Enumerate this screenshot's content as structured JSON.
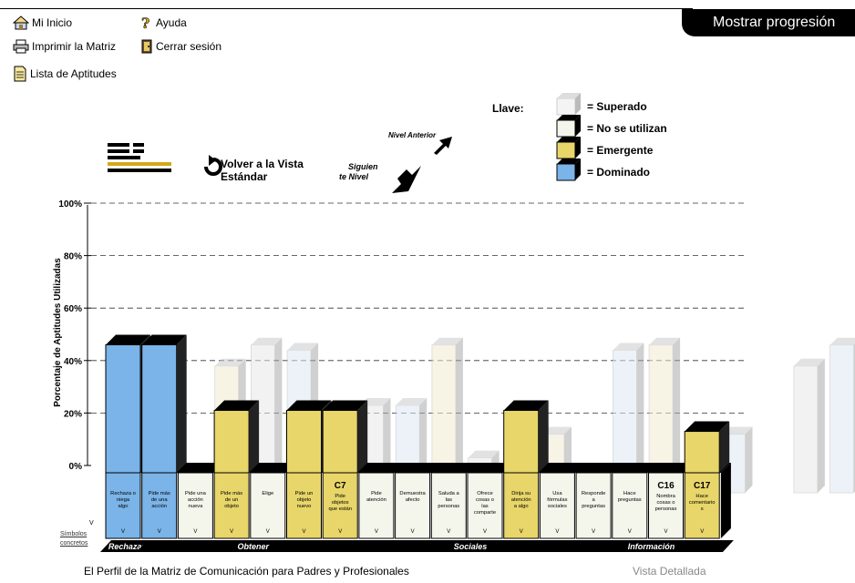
{
  "header": {
    "show_progression": "Mostrar progresión",
    "nav": {
      "home": "Mi Inicio",
      "help": "Ayuda",
      "print": "Imprimir la Matriz",
      "logout": "Cerrar sesión",
      "skills_list": "Lista de Aptitudes"
    }
  },
  "key": {
    "title": "Llave:",
    "items": [
      {
        "label": "= Superado",
        "color": "#f4f4f4"
      },
      {
        "label": "= No se utilizan",
        "color": "#f4f6ec"
      },
      {
        "label": "= Emergente",
        "color": "#e8d66a"
      },
      {
        "label": "= Dominado",
        "color": "#7ab4e8"
      }
    ]
  },
  "view": {
    "back_line1": "Volver a la Vista",
    "back_line2": "Estándar",
    "prev_level": "Nivel Anterior",
    "next_level_1": "Siguien",
    "next_level_2": "te Nivel"
  },
  "side": {
    "v": "V",
    "concrete_symbols_1": "Símbolos",
    "concrete_symbols_2": "concretos"
  },
  "chart_data": {
    "type": "bar",
    "ylabel": "Porcentaje de Aptitudes Utilizadas",
    "ylim": [
      0,
      100
    ],
    "yticks": [
      "0%",
      "20%",
      "40%",
      "60%",
      "80%",
      "100%"
    ],
    "grid": true,
    "bars": [
      {
        "label": "Rechaza o niega algo",
        "value": 46,
        "status": "Dominado",
        "code": ""
      },
      {
        "label": "Pide más de una acción",
        "value": 46,
        "status": "Dominado",
        "code": ""
      },
      {
        "label": "Pide una acción nueva",
        "value": 0,
        "status": "No se utilizan",
        "code": ""
      },
      {
        "label": "Pide más de un objeto",
        "value": 21,
        "status": "Emergente",
        "code": ""
      },
      {
        "label": "Elige",
        "value": 0,
        "status": "No se utilizan",
        "code": ""
      },
      {
        "label": "Pide un objeto nuevo",
        "value": 21,
        "status": "Emergente",
        "code": ""
      },
      {
        "label": "Pide objetos que están",
        "value": 21,
        "status": "Emergente",
        "code": "C7"
      },
      {
        "label": "Pide atención",
        "value": 0,
        "status": "No se utilizan",
        "code": ""
      },
      {
        "label": "Demuestra afecto",
        "value": 0,
        "status": "No se utilizan",
        "code": ""
      },
      {
        "label": "Saluda a las personas",
        "value": 0,
        "status": "No se utilizan",
        "code": ""
      },
      {
        "label": "Ofrece cosas o las comparte",
        "value": 0,
        "status": "No se utilizan",
        "code": ""
      },
      {
        "label": "Dirija su atención a algo",
        "value": 21,
        "status": "Emergente",
        "code": ""
      },
      {
        "label": "Usa fórmulas sociales",
        "value": 0,
        "status": "No se utilizan",
        "code": ""
      },
      {
        "label": "Responde a preguntas",
        "value": 0,
        "status": "No se utilizan",
        "code": ""
      },
      {
        "label": "Hace preguntas",
        "value": 0,
        "status": "No se utilizan",
        "code": ""
      },
      {
        "label": "Nombra cosas o personas",
        "value": 0,
        "status": "No se utilizan",
        "code": "C16"
      },
      {
        "label": "Hace comentario s",
        "value": 13,
        "status": "Emergente",
        "code": "C17"
      }
    ],
    "cell_mark": "V",
    "groups": [
      {
        "label": "Rechazar",
        "start": 0,
        "end": 0
      },
      {
        "label": "Obtener",
        "start": 1,
        "end": 6
      },
      {
        "label": "Sociales",
        "start": 7,
        "end": 12
      },
      {
        "label": "Información",
        "start": 13,
        "end": 16
      }
    ],
    "ghost_back_row": [
      0,
      40,
      48,
      46,
      0,
      25,
      25,
      48,
      5,
      14,
      14,
      0,
      46,
      48,
      14,
      14,
      0,
      40,
      48
    ],
    "ghost_front_row": [
      0,
      0,
      0,
      0,
      0,
      0,
      0,
      0,
      0,
      0,
      0,
      0,
      0,
      0,
      0,
      0,
      0,
      0
    ]
  },
  "footer": {
    "title": "El Perfil de la Matriz de Comunicación para Padres y Profesionales",
    "detailed_view": "Vista Detallada"
  }
}
